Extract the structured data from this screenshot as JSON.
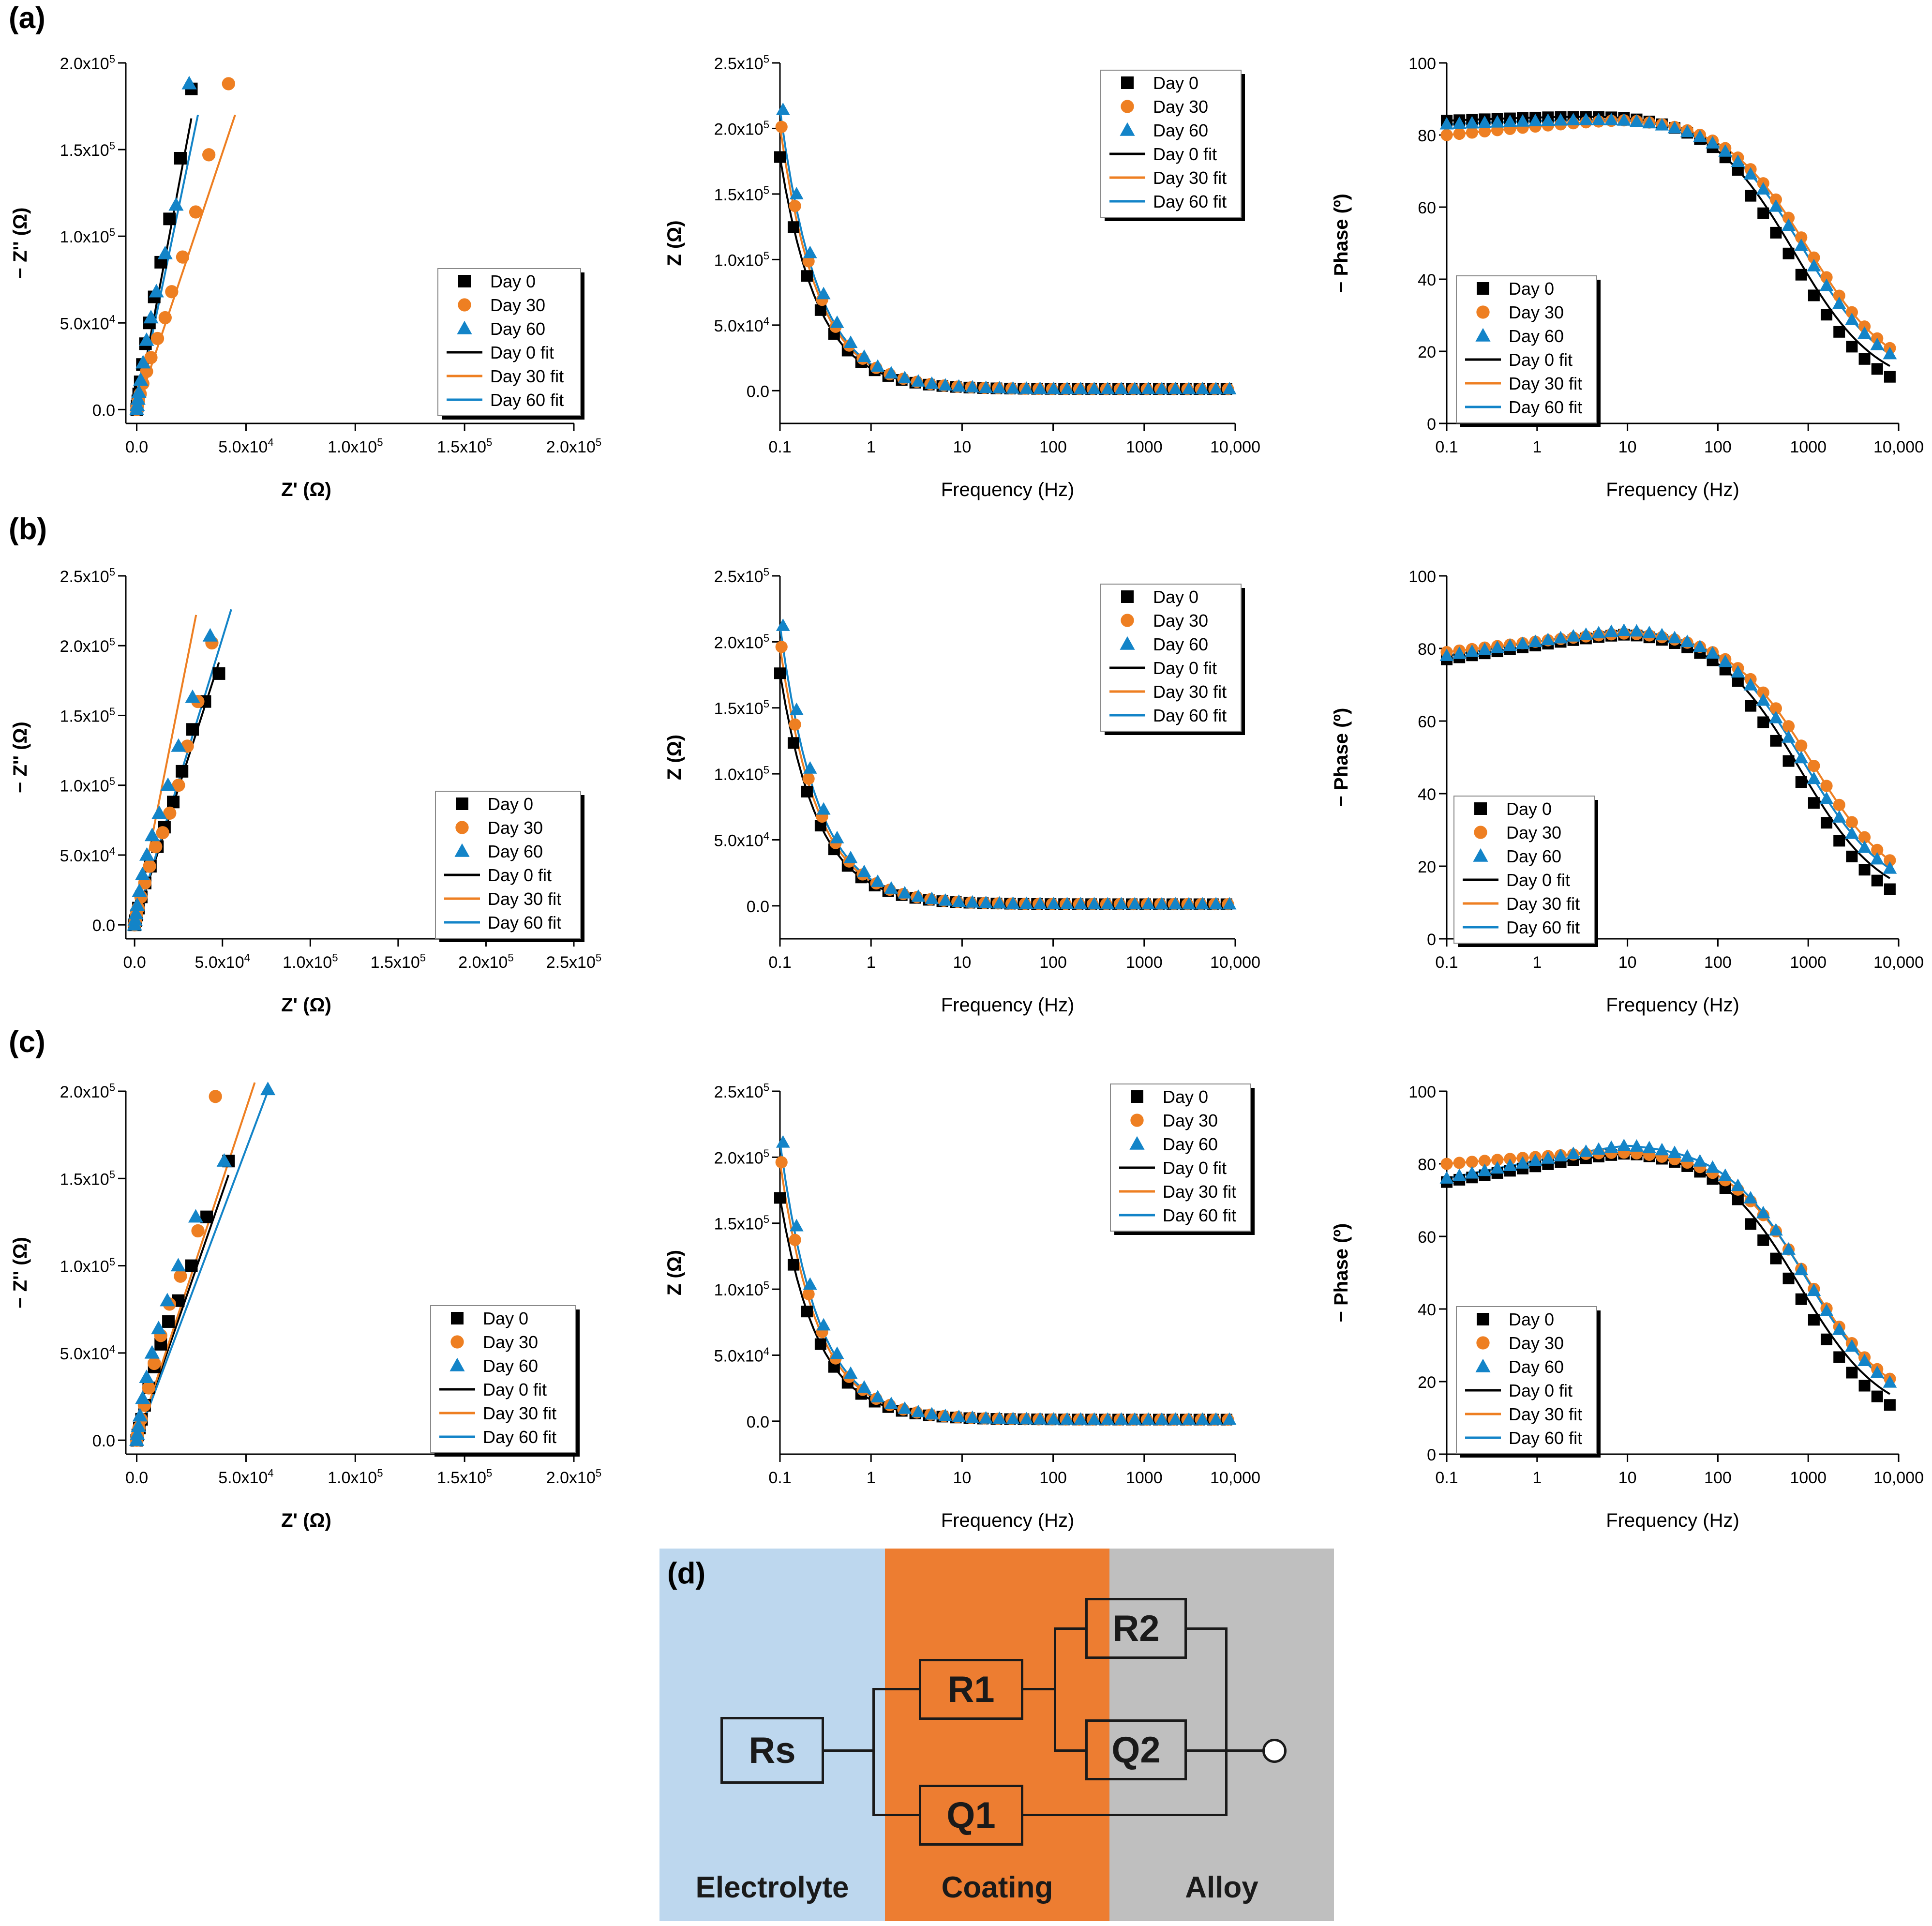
{
  "colors": {
    "day0": "#000000",
    "day30": "#ee7f22",
    "day60": "#1384c8",
    "electrolyte": "#bdd7ee",
    "coating": "#ed7d31",
    "alloy": "#bfbfbf"
  },
  "legend": [
    "Day 0",
    "Day 30",
    "Day 60",
    "Day 0 fit",
    "Day 30 fit",
    "Day 60 fit"
  ],
  "panels": [
    {
      "label": "(a)",
      "row": 0
    },
    {
      "label": "(b)",
      "row": 1
    },
    {
      "label": "(c)",
      "row": 2
    }
  ],
  "chart_data": [
    {
      "id": "a-nyquist",
      "type": "scatter",
      "xlabel": "Z' (Ω)",
      "ylabel": "− Z'' (Ω)",
      "xlim": [
        -5000,
        200000
      ],
      "ylim": [
        -8000,
        200000
      ],
      "xticks": [
        "0.0",
        "5.0x10^4",
        "1.0x10^5",
        "1.5x10^5",
        "2.0x10^5"
      ],
      "yticks": [
        "0.0",
        "5.0x10^4",
        "1.0x10^5",
        "1.5x10^5",
        "2.0x10^5"
      ],
      "series": [
        {
          "name": "Day 0",
          "x": [
            0,
            200,
            500,
            900,
            1600,
            2600,
            4000,
            5800,
            8000,
            11000,
            15000,
            20000,
            25000
          ],
          "y": [
            0,
            2000,
            5000,
            9000,
            16000,
            26000,
            38000,
            50000,
            65000,
            85000,
            110000,
            145000,
            185000
          ]
        },
        {
          "name": "Day 30",
          "x": [
            0,
            300,
            800,
            1600,
            2800,
            4500,
            6500,
            9500,
            13000,
            16000,
            21000,
            27000,
            33000,
            42000
          ],
          "y": [
            0,
            2000,
            5000,
            9000,
            15000,
            22000,
            30000,
            41000,
            53000,
            68000,
            88000,
            114000,
            147000,
            188000
          ]
        },
        {
          "name": "Day 60",
          "x": [
            0,
            250,
            600,
            1000,
            1800,
            2900,
            4500,
            6500,
            9000,
            13000,
            18000,
            24000
          ],
          "y": [
            0,
            2500,
            6000,
            10000,
            17000,
            27000,
            40000,
            53000,
            68000,
            90000,
            118000,
            188000
          ]
        },
        {
          "name": "Day 0 fit",
          "x": [
            0,
            25000
          ],
          "y": [
            0,
            168000
          ],
          "fit": true
        },
        {
          "name": "Day 30 fit",
          "x": [
            0,
            45000
          ],
          "y": [
            0,
            170000
          ],
          "fit": true
        },
        {
          "name": "Day 60 fit",
          "x": [
            0,
            28000
          ],
          "y": [
            0,
            170000
          ],
          "fit": true
        }
      ]
    },
    {
      "id": "a-mod",
      "type": "line",
      "xlabel": "Frequency (Hz)",
      "ylabel": "Z (Ω)",
      "log_x": true,
      "xlim": [
        0.1,
        10000
      ],
      "ylim": [
        -25000,
        250000
      ],
      "xticks": [
        "0.1",
        "1",
        "10",
        "100",
        "1000",
        "10,000"
      ],
      "yticks": [
        "0.0",
        "5.0x10^4",
        "1.0x10^5",
        "1.5x10^5",
        "2.0x10^5",
        "2.5x10^5"
      ],
      "series_peak": [
        177000,
        200000,
        213000
      ]
    },
    {
      "id": "a-phase",
      "type": "line",
      "xlabel": "Frequency (Hz)",
      "ylabel": "− Phase (º)",
      "log_x": true,
      "xlim": [
        0.1,
        10000
      ],
      "ylim": [
        0,
        100
      ],
      "xticks": [
        "0.1",
        "1",
        "10",
        "100",
        "1000",
        "10,000"
      ],
      "yticks": [
        "0",
        "20",
        "40",
        "60",
        "80",
        "100"
      ],
      "series_param": [
        {
          "name": "Day 0",
          "lo": 84,
          "hi": 86,
          "fc": 700,
          "end": 9
        },
        {
          "name": "Day 30",
          "lo": 80,
          "hi": 85,
          "fc": 1000,
          "end": 12
        },
        {
          "name": "Day 60",
          "lo": 83,
          "hi": 85,
          "fc": 900,
          "end": 11
        }
      ]
    },
    {
      "id": "b-nyquist",
      "type": "scatter",
      "xlabel": "Z' (Ω)",
      "ylabel": "− Z'' (Ω)",
      "xlim": [
        -5000,
        250000
      ],
      "ylim": [
        -10000,
        250000
      ],
      "xticks": [
        "0.0",
        "5.0x10^4",
        "1.0x10^5",
        "1.5x10^5",
        "2.0x10^5",
        "2.5x10^5"
      ],
      "yticks": [
        "0.0",
        "5.0x10^4",
        "1.0x10^5",
        "1.5x10^5",
        "2.0x10^5",
        "2.5x10^5"
      ],
      "series": [
        {
          "name": "Day 0",
          "x": [
            0,
            500,
            1200,
            2200,
            3800,
            6000,
            9000,
            13000,
            17000,
            22000,
            27000,
            33000,
            40000,
            48000
          ],
          "y": [
            0,
            3000,
            7000,
            12000,
            20000,
            30000,
            42000,
            56000,
            70000,
            88000,
            110000,
            140000,
            160000,
            180000
          ]
        },
        {
          "name": "Day 30",
          "x": [
            0,
            400,
            1000,
            2000,
            3600,
            5800,
            8500,
            12000,
            16000,
            20000,
            25000,
            30000,
            36000,
            44000
          ],
          "y": [
            0,
            3000,
            7000,
            12000,
            20000,
            30000,
            42000,
            56000,
            66000,
            80000,
            100000,
            128000,
            160000,
            202000
          ]
        },
        {
          "name": "Day 60",
          "x": [
            0,
            300,
            800,
            1500,
            2700,
            4500,
            7000,
            10000,
            14000,
            19000,
            25000,
            33000,
            43000
          ],
          "y": [
            0,
            3500,
            8000,
            14000,
            24000,
            36000,
            50000,
            64000,
            80000,
            100000,
            128000,
            163000,
            207000
          ]
        },
        {
          "name": "Day 0 fit",
          "x": [
            0,
            48000
          ],
          "y": [
            0,
            188000
          ],
          "fit": true
        },
        {
          "name": "Day 30 fit",
          "x": [
            0,
            35000
          ],
          "y": [
            0,
            222000
          ],
          "fit": true
        },
        {
          "name": "Day 60 fit",
          "x": [
            0,
            55000
          ],
          "y": [
            0,
            226000
          ],
          "fit": true
        }
      ]
    },
    {
      "id": "b-mod",
      "type": "line",
      "xlabel": "Frequency (Hz)",
      "ylabel": "Z (Ω)",
      "log_x": true,
      "xlim": [
        0.1,
        10000
      ],
      "ylim": [
        -25000,
        250000
      ],
      "xticks": [
        "0.1",
        "1",
        "10",
        "100",
        "1000",
        "10,000"
      ],
      "yticks": [
        "0.0",
        "5.0x10^4",
        "1.0x10^5",
        "1.5x10^5",
        "2.0x10^5",
        "2.5x10^5"
      ],
      "series_peak": [
        175000,
        195000,
        211000
      ]
    },
    {
      "id": "b-phase",
      "type": "line",
      "xlabel": "Frequency (Hz)",
      "ylabel": "− Phase (º)",
      "log_x": true,
      "xlim": [
        0.1,
        10000
      ],
      "ylim": [
        0,
        100
      ],
      "xticks": [
        "0.1",
        "1",
        "10",
        "100",
        "1000",
        "10,000"
      ],
      "yticks": [
        "0",
        "20",
        "40",
        "60",
        "80",
        "100"
      ],
      "series_param": [
        {
          "name": "Day 0",
          "lo": 77,
          "hi": 85,
          "fc": 800,
          "end": 9
        },
        {
          "name": "Day 30",
          "lo": 79,
          "hi": 85,
          "fc": 1100,
          "end": 12
        },
        {
          "name": "Day 60",
          "lo": 78,
          "hi": 86,
          "fc": 900,
          "end": 11
        }
      ]
    },
    {
      "id": "c-nyquist",
      "type": "scatter",
      "xlabel": "Z' (Ω)",
      "ylabel": "− Z'' (Ω)",
      "xlim": [
        -5000,
        200000
      ],
      "ylim": [
        -8000,
        200000
      ],
      "xticks": [
        "0.0",
        "5.0x10^4",
        "1.0x10^5",
        "1.5x10^5",
        "2.0x10^5"
      ],
      "yticks": [
        "0.0",
        "5.0x10^4",
        "1.0x10^5",
        "1.5x10^5",
        "2.0x10^5"
      ],
      "series": [
        {
          "name": "Day 0",
          "x": [
            0,
            500,
            1200,
            2200,
            3600,
            5500,
            8000,
            11000,
            14500,
            19000,
            25000,
            32000,
            42000
          ],
          "y": [
            0,
            3000,
            7000,
            12000,
            20000,
            30000,
            42000,
            55000,
            68000,
            80000,
            100000,
            128000,
            160000
          ]
        },
        {
          "name": "Day 30",
          "x": [
            0,
            400,
            1000,
            2000,
            3500,
            5500,
            8000,
            11000,
            15000,
            20000,
            28000,
            36000
          ],
          "y": [
            0,
            3000,
            7000,
            12000,
            20000,
            30000,
            44000,
            60000,
            78000,
            94000,
            120000,
            197000
          ]
        },
        {
          "name": "Day 60",
          "x": [
            0,
            300,
            800,
            1500,
            2700,
            4500,
            7000,
            10000,
            14000,
            19000,
            27000,
            40000,
            60000
          ],
          "y": [
            0,
            3500,
            8000,
            14000,
            24000,
            36000,
            50000,
            64000,
            80000,
            100000,
            128000,
            160000,
            201000
          ]
        },
        {
          "name": "Day 0 fit",
          "x": [
            0,
            42000
          ],
          "y": [
            0,
            152000
          ],
          "fit": true
        },
        {
          "name": "Day 30 fit",
          "x": [
            0,
            54000
          ],
          "y": [
            0,
            205000
          ],
          "fit": true
        },
        {
          "name": "Day 60 fit",
          "x": [
            0,
            60000
          ],
          "y": [
            0,
            200000
          ],
          "fit": true
        }
      ]
    },
    {
      "id": "c-mod",
      "type": "line",
      "xlabel": "Frequency (Hz)",
      "ylabel": "Z (Ω)",
      "log_x": true,
      "xlim": [
        0.1,
        10000
      ],
      "ylim": [
        -25000,
        250000
      ],
      "xticks": [
        "0.1",
        "1",
        "10",
        "100",
        "1000",
        "10,000"
      ],
      "yticks": [
        "0.0",
        "5.0x10^4",
        "1.0x10^5",
        "1.5x10^5",
        "2.0x10^5",
        "2.5x10^5"
      ],
      "series_peak": [
        168000,
        195000,
        210000
      ]
    },
    {
      "id": "c-phase",
      "type": "line",
      "xlabel": "Frequency (Hz)",
      "ylabel": "− Phase (º)",
      "log_x": true,
      "xlim": [
        0.1,
        10000
      ],
      "ylim": [
        0,
        100
      ],
      "xticks": [
        "0.1",
        "1",
        "10",
        "100",
        "1000",
        "10,000"
      ],
      "yticks": [
        "0",
        "20",
        "40",
        "60",
        "80",
        "100"
      ],
      "series_param": [
        {
          "name": "Day 0",
          "lo": 75,
          "hi": 84,
          "fc": 800,
          "end": 9
        },
        {
          "name": "Day 30",
          "lo": 80,
          "hi": 84,
          "fc": 1000,
          "end": 12
        },
        {
          "name": "Day 60",
          "lo": 76,
          "hi": 86,
          "fc": 950,
          "end": 11
        }
      ]
    }
  ],
  "circuit": {
    "label": "(d)",
    "zones": [
      "Electrolyte",
      "Coating",
      "Alloy"
    ],
    "elements": {
      "rs": "Rs",
      "r1": "R1",
      "q1": "Q1",
      "r2": "R2",
      "q2": "Q2"
    }
  }
}
